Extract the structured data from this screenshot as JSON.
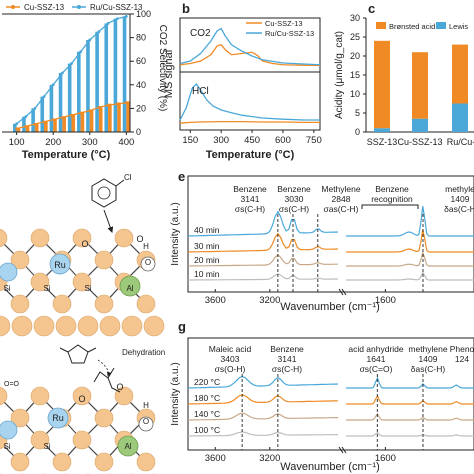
{
  "chart_data": [
    {
      "panel": "a",
      "type": "bar",
      "xlabel": "Temperature (°C)",
      "ylabel_right": "CO2 Selectivity (%)",
      "x_ticks": [
        "100",
        "200",
        "300",
        "400"
      ],
      "y_ticks_right": [
        "0",
        "20",
        "40",
        "60",
        "80",
        "100"
      ],
      "ylim": [
        0,
        100
      ],
      "legend": [
        "Cu-SSZ-13",
        "Ru/Cu-SSZ-13"
      ],
      "x": [
        100,
        125,
        150,
        175,
        200,
        225,
        250,
        275,
        300,
        325,
        350,
        375,
        400
      ],
      "series": [
        {
          "name": "Ru/Cu-SSZ-13",
          "color": "#4aa8d8",
          "values": [
            7,
            13,
            20,
            30,
            40,
            50,
            58,
            68,
            78,
            85,
            92,
            96,
            98
          ]
        },
        {
          "name": "Cu-SSZ-13",
          "color": "#f08a24",
          "values": [
            3,
            5,
            7,
            9,
            11,
            13,
            15,
            17,
            19,
            22,
            24,
            25,
            26
          ]
        }
      ]
    },
    {
      "panel": "b",
      "type": "line",
      "xlabel": "Temperature (°C)",
      "ylabel": "MS signal",
      "x_ticks": [
        "150",
        "300",
        "450",
        "600",
        "750"
      ],
      "xlim": [
        100,
        780
      ],
      "legend": [
        "Cu-SSZ-13",
        "Ru/Cu-SSZ-13"
      ],
      "subplots": [
        {
          "label": "CO2",
          "series": [
            {
              "name": "Cu-SSZ-13",
              "color": "#f08a24",
              "x": [
                100,
                150,
                200,
                250,
                280,
                300,
                320,
                350,
                400,
                450,
                480,
                500,
                550,
                600,
                700,
                780
              ],
              "y": [
                0.05,
                0.1,
                0.2,
                0.45,
                0.8,
                0.85,
                0.65,
                0.45,
                0.5,
                0.55,
                0.4,
                0.2,
                0.1,
                0.05,
                0.03,
                0.02
              ]
            },
            {
              "name": "Ru/Cu-SSZ-13",
              "color": "#4aa8d8",
              "x": [
                100,
                150,
                200,
                250,
                280,
                300,
                320,
                350,
                400,
                450,
                500,
                600,
                700,
                780
              ],
              "y": [
                0.1,
                0.2,
                0.5,
                1.0,
                1.4,
                1.5,
                1.2,
                0.85,
                0.6,
                0.4,
                0.25,
                0.12,
                0.08,
                0.05
              ]
            }
          ]
        },
        {
          "label": "HCl",
          "series": [
            {
              "name": "Cu-SSZ-13",
              "color": "#f08a24",
              "x": [
                100,
                150,
                200,
                300,
                400,
                500,
                600,
                700,
                780
              ],
              "y": [
                0.02,
                0.04,
                0.05,
                0.06,
                0.06,
                0.05,
                0.05,
                0.04,
                0.04
              ]
            },
            {
              "name": "Ru/Cu-SSZ-13",
              "color": "#4aa8d8",
              "x": [
                100,
                130,
                160,
                180,
                200,
                230,
                260,
                300,
                350,
                400,
                500,
                600,
                700,
                780
              ],
              "y": [
                0.1,
                0.4,
                0.9,
                1.0,
                0.85,
                0.6,
                0.45,
                0.35,
                0.28,
                0.22,
                0.15,
                0.12,
                0.1,
                0.1
              ]
            }
          ]
        }
      ]
    },
    {
      "panel": "c",
      "type": "bar",
      "ylabel": "Acidity (μmol/g_cat)",
      "ylim": [
        0,
        30
      ],
      "y_ticks": [
        "0",
        "5",
        "10",
        "15",
        "20",
        "25",
        "30"
      ],
      "categories": [
        "SSZ-13",
        "Cu-SSZ-13",
        "Ru/Cu-S"
      ],
      "legend": [
        "Brønsted acid",
        "Lewis"
      ],
      "series": [
        {
          "name": "Lewis",
          "color": "#4aa8d8",
          "values": [
            1.0,
            3.5,
            7.5
          ]
        },
        {
          "name": "Brønsted acid",
          "color": "#f08a24",
          "values": [
            23.0,
            17.5,
            15.5
          ]
        }
      ]
    },
    {
      "panel": "e",
      "type": "line",
      "xlabel": "Wavenumber (cm⁻¹)",
      "ylabel": "Intensity (a.u.)",
      "x_ticks": [
        "3600",
        "3200",
        "1600"
      ],
      "series_labels": [
        "40 min",
        "30 min",
        "20 min",
        "10 min"
      ],
      "colors": [
        "#4aa8d8",
        "#f08a24",
        "#c8a888",
        "#bdbdbd"
      ],
      "annotations": [
        {
          "line1": "Benzene",
          "line2": "3141",
          "line3": "σs(C-H)"
        },
        {
          "line1": "Benzene",
          "line2": "3030",
          "line3": "σs(C-H)"
        },
        {
          "line1": "Methylene",
          "line2": "2848",
          "line3": "σas(C-H)"
        },
        {
          "line1": "Benzene",
          "line2": "recognition",
          "line3": ""
        },
        {
          "line1": "methyle",
          "line2": "1409",
          "line3": "δas(C-H"
        }
      ]
    },
    {
      "panel": "g",
      "type": "line",
      "xlabel": "Wavenumber (cm⁻¹)",
      "ylabel": "Intensity (a.u.)",
      "x_ticks": [
        "3600",
        "3200",
        "1600"
      ],
      "series_labels": [
        "220 °C",
        "180 °C",
        "140 °C",
        "100 °C"
      ],
      "colors": [
        "#4aa8d8",
        "#f08a24",
        "#c8a888",
        "#bdbdbd"
      ],
      "annotations": [
        {
          "line1": "Maleic acid",
          "line2": "3403",
          "line3": "σs(O-H)"
        },
        {
          "line1": "Benzene",
          "line2": "3141",
          "line3": "σs(C-H)"
        },
        {
          "line1": "acid anhydride",
          "line2": "1641",
          "line3": "σs(C=O)"
        },
        {
          "line1": "methylene",
          "line2": "1409",
          "line3": "δas(C-H)"
        },
        {
          "line1": "Pheno",
          "line2": "124",
          "line3": ""
        }
      ]
    }
  ],
  "panel_labels": {
    "b": "b",
    "c": "c",
    "e": "e",
    "g": "g"
  },
  "schematic": {
    "top_labels": [
      "Ru",
      "O",
      "O",
      "Si",
      "Si",
      "Si",
      "Al",
      "O",
      "H",
      "Cl"
    ],
    "bottom_labels": [
      "Ru",
      "O",
      "O",
      "Si",
      "Si",
      "Al",
      "O",
      "H",
      "Dehydration"
    ]
  },
  "colors": {
    "orange": "#f08a24",
    "blue": "#4aa8d8",
    "gray": "#bdbdbd",
    "tan": "#c8a888",
    "atom": "#f5c590",
    "ru": "#a9d4ef",
    "al": "#9cc97a"
  }
}
